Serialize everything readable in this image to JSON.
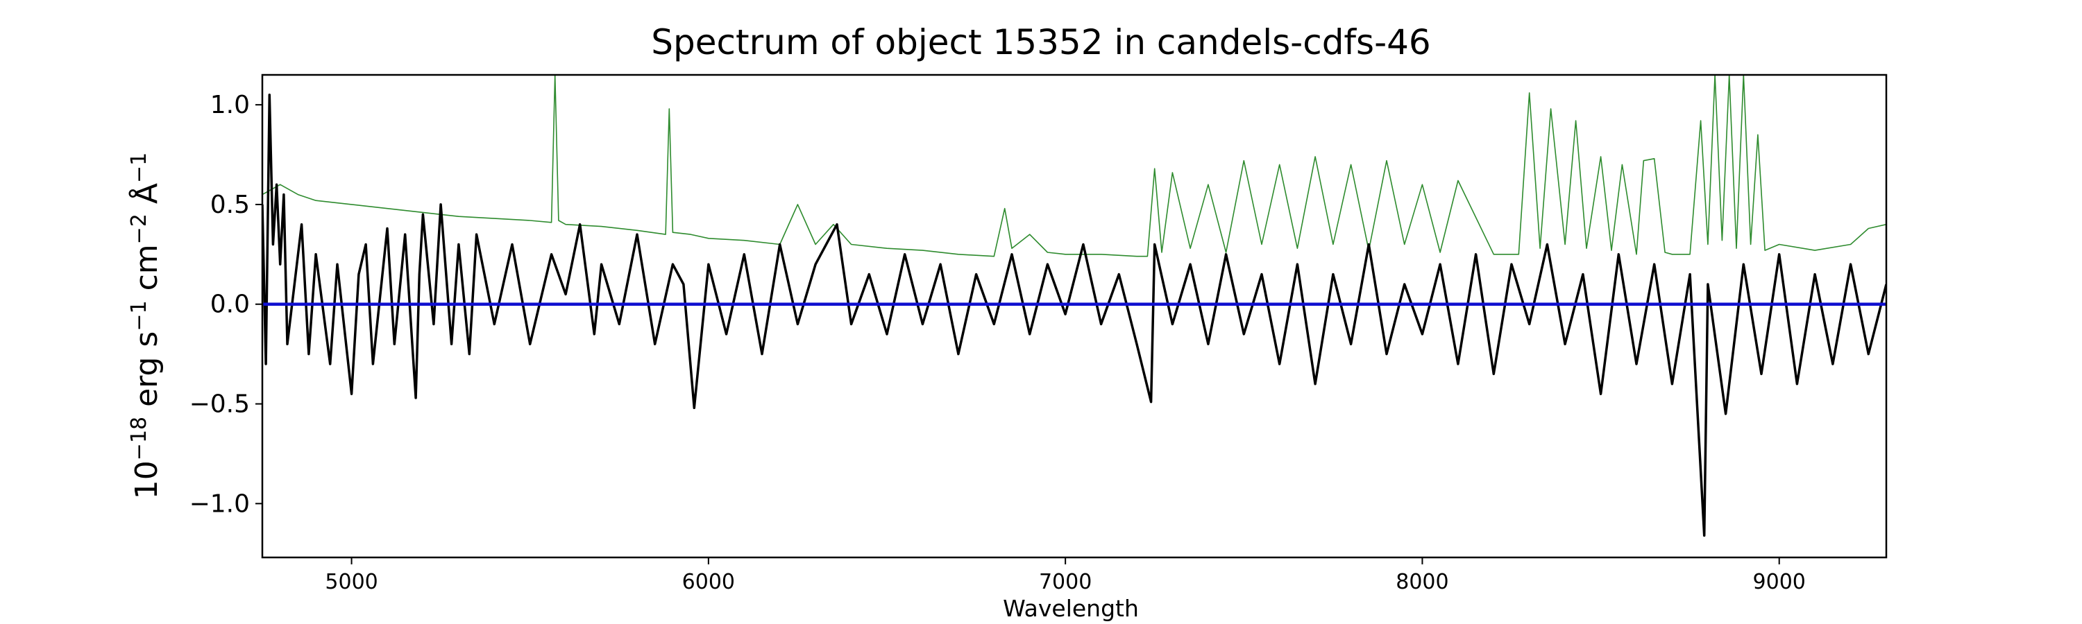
{
  "chart_data": {
    "type": "line",
    "title": "Spectrum of object 15352 in candels-cdfs-46",
    "xlabel": "Wavelength",
    "ylabel": {
      "base": "10",
      "exp1": "−18",
      "erg": " erg s",
      "exp2": "−1",
      "cm": " cm",
      "exp3": "−2",
      "ang": " Å",
      "exp4": "−1"
    },
    "xlim": [
      4750,
      9300
    ],
    "ylim": [
      -1.27,
      1.15
    ],
    "xticks": [
      5000,
      6000,
      7000,
      8000,
      9000
    ],
    "xtick_labels": [
      "5000",
      "6000",
      "7000",
      "8000",
      "9000"
    ],
    "yticks": [
      1.0,
      0.5,
      0.0,
      -0.5,
      -1.0
    ],
    "ytick_labels": [
      "1.0",
      "0.5",
      "0.0",
      "−0.5",
      "−1.0"
    ],
    "grid": false,
    "series": [
      {
        "role": "flux",
        "color": "#000000",
        "x": [
          4750,
          4760,
          4770,
          4780,
          4790,
          4800,
          4810,
          4820,
          4840,
          4860,
          4880,
          4900,
          4940,
          4960,
          5000,
          5020,
          5040,
          5060,
          5100,
          5120,
          5150,
          5180,
          5190,
          5200,
          5230,
          5250,
          5280,
          5300,
          5330,
          5350,
          5400,
          5450,
          5500,
          5560,
          5600,
          5640,
          5680,
          5700,
          5750,
          5800,
          5850,
          5900,
          5930,
          5960,
          6000,
          6050,
          6100,
          6150,
          6200,
          6250,
          6300,
          6360,
          6400,
          6450,
          6500,
          6550,
          6600,
          6650,
          6700,
          6750,
          6800,
          6850,
          6900,
          6950,
          7000,
          7050,
          7100,
          7150,
          7200,
          7240,
          7250,
          7300,
          7350,
          7400,
          7450,
          7500,
          7550,
          7600,
          7650,
          7700,
          7750,
          7800,
          7850,
          7900,
          7950,
          8000,
          8050,
          8100,
          8150,
          8200,
          8250,
          8300,
          8350,
          8400,
          8450,
          8500,
          8550,
          8600,
          8650,
          8700,
          8750,
          8790,
          8800,
          8850,
          8900,
          8950,
          9000,
          9050,
          9100,
          9150,
          9200,
          9250,
          9300
        ],
        "y": [
          0.5,
          -0.3,
          1.05,
          0.3,
          0.6,
          0.2,
          0.55,
          -0.2,
          0.1,
          0.4,
          -0.25,
          0.25,
          -0.3,
          0.2,
          -0.45,
          0.15,
          0.3,
          -0.3,
          0.38,
          -0.2,
          0.35,
          -0.47,
          0.15,
          0.45,
          -0.1,
          0.5,
          -0.2,
          0.3,
          -0.25,
          0.35,
          -0.1,
          0.3,
          -0.2,
          0.25,
          0.05,
          0.4,
          -0.15,
          0.2,
          -0.1,
          0.35,
          -0.2,
          0.2,
          0.1,
          -0.52,
          0.2,
          -0.15,
          0.25,
          -0.25,
          0.3,
          -0.1,
          0.2,
          0.4,
          -0.1,
          0.15,
          -0.15,
          0.25,
          -0.1,
          0.2,
          -0.25,
          0.15,
          -0.1,
          0.25,
          -0.15,
          0.2,
          -0.05,
          0.3,
          -0.1,
          0.15,
          -0.2,
          -0.49,
          0.3,
          -0.1,
          0.2,
          -0.2,
          0.25,
          -0.15,
          0.15,
          -0.3,
          0.2,
          -0.4,
          0.15,
          -0.2,
          0.3,
          -0.25,
          0.1,
          -0.15,
          0.2,
          -0.3,
          0.25,
          -0.35,
          0.2,
          -0.1,
          0.3,
          -0.2,
          0.15,
          -0.45,
          0.25,
          -0.3,
          0.2,
          -0.4,
          0.15,
          -1.16,
          0.1,
          -0.55,
          0.2,
          -0.35,
          0.25,
          -0.4,
          0.15,
          -0.3,
          0.2,
          -0.25,
          0.1
        ]
      },
      {
        "role": "error",
        "color": "#2e8b2e",
        "x": [
          4750,
          4800,
          4850,
          4900,
          5000,
          5100,
          5200,
          5300,
          5400,
          5500,
          5560,
          5570,
          5580,
          5600,
          5700,
          5800,
          5880,
          5890,
          5900,
          5950,
          6000,
          6100,
          6200,
          6250,
          6300,
          6350,
          6400,
          6500,
          6600,
          6700,
          6800,
          6830,
          6850,
          6900,
          6950,
          7000,
          7100,
          7200,
          7230,
          7250,
          7270,
          7300,
          7350,
          7400,
          7450,
          7500,
          7550,
          7600,
          7650,
          7700,
          7750,
          7800,
          7850,
          7900,
          7950,
          8000,
          8050,
          8100,
          8200,
          8270,
          8300,
          8330,
          8360,
          8400,
          8430,
          8460,
          8500,
          8530,
          8560,
          8600,
          8620,
          8650,
          8680,
          8700,
          8750,
          8780,
          8800,
          8820,
          8840,
          8860,
          8880,
          8900,
          8920,
          8940,
          8960,
          9000,
          9100,
          9200,
          9250,
          9300
        ],
        "y": [
          0.55,
          0.6,
          0.55,
          0.52,
          0.5,
          0.48,
          0.46,
          0.44,
          0.43,
          0.42,
          0.41,
          1.15,
          0.42,
          0.4,
          0.39,
          0.37,
          0.35,
          0.98,
          0.36,
          0.35,
          0.33,
          0.32,
          0.3,
          0.5,
          0.3,
          0.4,
          0.3,
          0.28,
          0.27,
          0.25,
          0.24,
          0.48,
          0.28,
          0.35,
          0.26,
          0.25,
          0.25,
          0.24,
          0.24,
          0.68,
          0.26,
          0.66,
          0.28,
          0.6,
          0.26,
          0.72,
          0.3,
          0.7,
          0.28,
          0.74,
          0.3,
          0.7,
          0.27,
          0.72,
          0.3,
          0.6,
          0.26,
          0.62,
          0.25,
          0.25,
          1.06,
          0.28,
          0.98,
          0.3,
          0.92,
          0.28,
          0.74,
          0.27,
          0.7,
          0.25,
          0.72,
          0.73,
          0.26,
          0.25,
          0.25,
          0.92,
          0.3,
          1.15,
          0.32,
          1.15,
          0.28,
          1.15,
          0.3,
          0.85,
          0.27,
          0.3,
          0.27,
          0.3,
          0.38,
          0.4
        ]
      },
      {
        "role": "model",
        "color": "#1010d0",
        "x": [
          4750,
          9300
        ],
        "y": [
          0.0,
          0.0
        ]
      }
    ]
  }
}
